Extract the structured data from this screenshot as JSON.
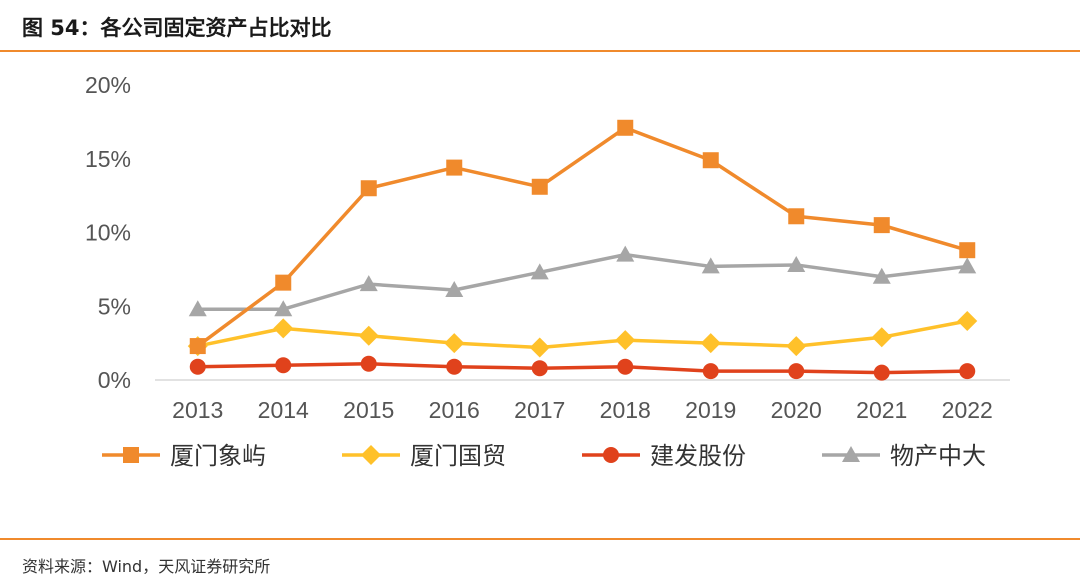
{
  "header": {
    "title": "图 54：各公司固定资产占比对比"
  },
  "footer": {
    "source": "资料来源：Wind，天风证券研究所"
  },
  "chart_data": {
    "type": "line",
    "categories": [
      "2013",
      "2014",
      "2015",
      "2016",
      "2017",
      "2018",
      "2019",
      "2020",
      "2021",
      "2022"
    ],
    "y_ticks": [
      "0%",
      "5%",
      "10%",
      "15%",
      "20%"
    ],
    "ylim": [
      0,
      20
    ],
    "y_unit": "%",
    "grid": false,
    "legend_position": "bottom",
    "series": [
      {
        "name": "厦门象屿",
        "color": "#f08a2c",
        "marker": "square",
        "values": [
          2.3,
          6.6,
          13.0,
          14.4,
          13.1,
          17.1,
          14.9,
          11.1,
          10.5,
          8.8
        ]
      },
      {
        "name": "厦门国贸",
        "color": "#ffc12a",
        "marker": "diamond",
        "values": [
          2.3,
          3.5,
          3.0,
          2.5,
          2.2,
          2.7,
          2.5,
          2.3,
          2.9,
          4.0
        ]
      },
      {
        "name": "建发股份",
        "color": "#e0421c",
        "marker": "circle",
        "values": [
          0.9,
          1.0,
          1.1,
          0.9,
          0.8,
          0.9,
          0.6,
          0.6,
          0.5,
          0.6
        ]
      },
      {
        "name": "物产中大",
        "color": "#a6a6a6",
        "marker": "triangle",
        "values": [
          4.8,
          4.8,
          6.5,
          6.1,
          7.3,
          8.5,
          7.7,
          7.8,
          7.0,
          7.7
        ]
      }
    ]
  }
}
